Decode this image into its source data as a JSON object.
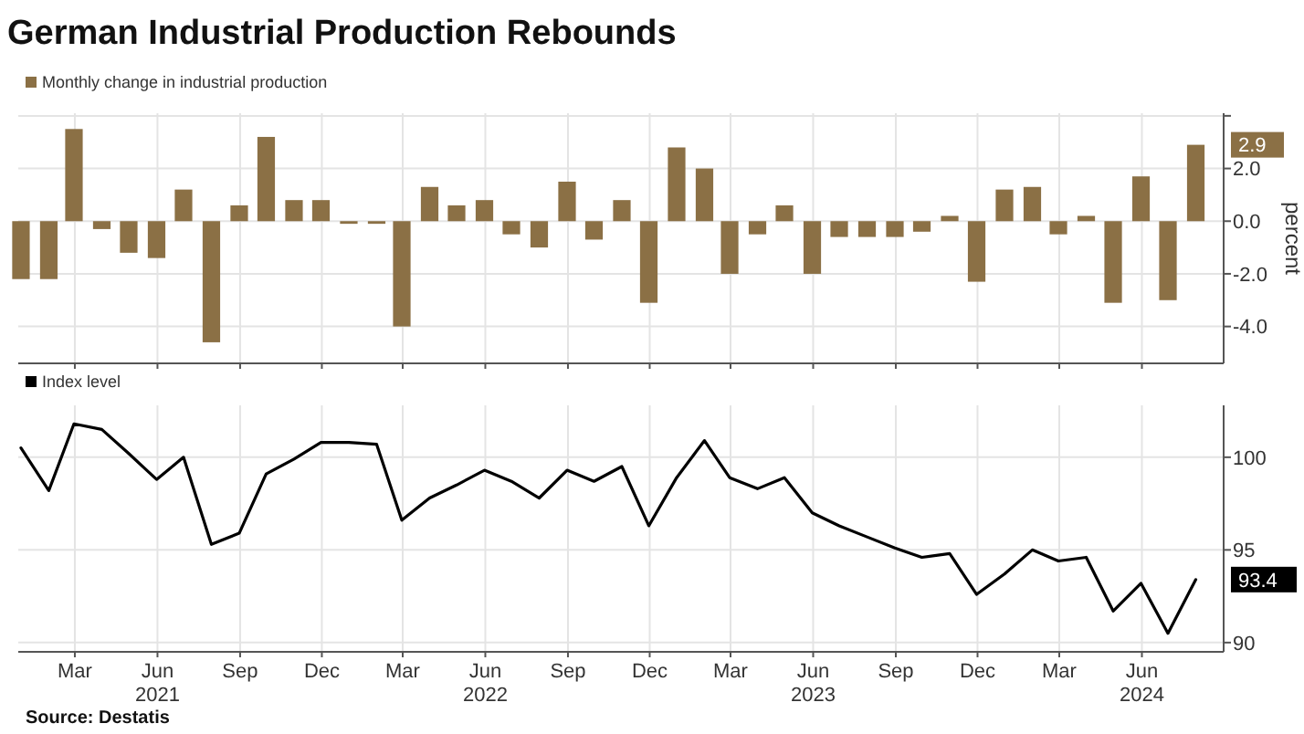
{
  "chart_data": [
    {
      "type": "bar",
      "title": "German Industrial Production Rebounds",
      "ylabel": "percent",
      "legend": "top left",
      "grid": true,
      "tick_labels": "y",
      "xlim": [
        "2020-12-28",
        "2024-08-31"
      ],
      "ylim": [
        -5.4,
        4.1
      ],
      "yticks": [
        {
          "value": 4,
          "label": null
        },
        {
          "value": 2,
          "label": "2.0"
        },
        {
          "value": 0,
          "label": "0.0"
        },
        {
          "value": -2,
          "label": "-2.0"
        },
        {
          "value": -4,
          "label": "-4.0"
        }
      ],
      "xticks": [
        {
          "value": "2021-03-01",
          "label": null
        },
        {
          "value": "2021-06-01",
          "label": null
        },
        {
          "value": "2021-09-01",
          "label": null
        },
        {
          "value": "2021-12-01",
          "label": null
        },
        {
          "value": "2022-03-01",
          "label": null
        },
        {
          "value": "2022-06-01",
          "label": null
        },
        {
          "value": "2022-09-01",
          "label": null
        },
        {
          "value": "2022-12-01",
          "label": null
        },
        {
          "value": "2023-03-01",
          "label": null
        },
        {
          "value": "2023-06-01",
          "label": null
        },
        {
          "value": "2023-09-01",
          "label": null
        },
        {
          "value": "2023-12-01",
          "label": null
        },
        {
          "value": "2024-03-01",
          "label": null
        },
        {
          "value": "2024-06-01",
          "label": null
        }
      ],
      "x": [
        "2020-12-31",
        "2021-01-31",
        "2021-02-28",
        "2021-03-31",
        "2021-04-30",
        "2021-05-31",
        "2021-06-30",
        "2021-07-31",
        "2021-08-31",
        "2021-09-30",
        "2021-10-31",
        "2021-11-30",
        "2021-12-31",
        "2022-01-31",
        "2022-02-28",
        "2022-03-31",
        "2022-04-30",
        "2022-05-31",
        "2022-06-30",
        "2022-07-31",
        "2022-08-31",
        "2022-09-30",
        "2022-10-31",
        "2022-11-30",
        "2022-12-31",
        "2023-01-31",
        "2023-02-28",
        "2023-03-31",
        "2023-04-30",
        "2023-05-31",
        "2023-06-30",
        "2023-07-31",
        "2023-08-31",
        "2023-09-30",
        "2023-10-31",
        "2023-11-30",
        "2023-12-31",
        "2024-01-31",
        "2024-02-29",
        "2024-03-31",
        "2024-04-30",
        "2024-05-31",
        "2024-06-30",
        "2024-07-31"
      ],
      "series": [
        {
          "name": "Monthly change in industrial production",
          "color": "#8b7045",
          "values": [
            -2.2,
            -2.2,
            3.5,
            -0.3,
            -1.2,
            -1.4,
            1.2,
            -4.6,
            0.6,
            3.2,
            0.8,
            0.8,
            -0.1,
            -0.1,
            -4.0,
            1.3,
            0.6,
            0.8,
            -0.5,
            -1.0,
            1.5,
            -0.7,
            0.8,
            -3.1,
            2.8,
            2.0,
            -2.0,
            -0.5,
            0.6,
            -2.0,
            -0.6,
            -0.6,
            -0.6,
            -0.4,
            0.2,
            -2.3,
            1.2,
            1.3,
            -0.5,
            0.2,
            -3.1,
            1.7,
            -3.0,
            2.9
          ]
        }
      ],
      "annotations": [
        {
          "text": "2.9",
          "x": "2024-07-31",
          "y": 2.9
        }
      ]
    },
    {
      "type": "line",
      "legend": "top left",
      "grid": true,
      "xlim": [
        "2020-12-28",
        "2024-08-31"
      ],
      "ylim": [
        89.5,
        102.8
      ],
      "yticks": [
        90,
        95,
        100
      ],
      "xticks": [
        {
          "value": "2021-03-01",
          "label": "Mar"
        },
        {
          "value": "2021-06-01",
          "label": "Jun\n2021"
        },
        {
          "value": "2021-09-01",
          "label": "Sep"
        },
        {
          "value": "2021-12-01",
          "label": "Dec"
        },
        {
          "value": "2022-03-01",
          "label": "Mar"
        },
        {
          "value": "2022-06-01",
          "label": "Jun\n2022"
        },
        {
          "value": "2022-09-01",
          "label": "Sep"
        },
        {
          "value": "2022-12-01",
          "label": "Dec"
        },
        {
          "value": "2023-03-01",
          "label": "Mar"
        },
        {
          "value": "2023-06-01",
          "label": "Jun\n2023"
        },
        {
          "value": "2023-09-01",
          "label": "Sep"
        },
        {
          "value": "2023-12-01",
          "label": "Dec"
        },
        {
          "value": "2024-03-01",
          "label": "Mar"
        },
        {
          "value": "2024-06-01",
          "label": "Jun\n2024"
        }
      ],
      "x": [
        "2020-12-31",
        "2021-01-31",
        "2021-02-28",
        "2021-03-31",
        "2021-04-30",
        "2021-05-31",
        "2021-06-30",
        "2021-07-31",
        "2021-08-31",
        "2021-09-30",
        "2021-10-31",
        "2021-11-30",
        "2021-12-31",
        "2022-01-31",
        "2022-02-28",
        "2022-03-31",
        "2022-04-30",
        "2022-05-31",
        "2022-06-30",
        "2022-07-31",
        "2022-08-31",
        "2022-09-30",
        "2022-10-31",
        "2022-11-30",
        "2022-12-31",
        "2023-01-31",
        "2023-02-28",
        "2023-03-31",
        "2023-04-30",
        "2023-05-31",
        "2023-06-30",
        "2023-07-31",
        "2023-08-31",
        "2023-09-30",
        "2023-10-31",
        "2023-11-30",
        "2023-12-31",
        "2024-01-31",
        "2024-02-29",
        "2024-03-31",
        "2024-04-30",
        "2024-05-31",
        "2024-06-30",
        "2024-07-31"
      ],
      "series": [
        {
          "name": "Index level",
          "color": "#000000",
          "values": [
            100.5,
            98.2,
            101.8,
            101.5,
            100.2,
            98.8,
            100.0,
            95.3,
            95.9,
            99.1,
            99.9,
            100.8,
            100.8,
            100.7,
            96.6,
            97.8,
            98.5,
            99.3,
            98.7,
            97.8,
            99.3,
            98.7,
            99.5,
            96.3,
            98.9,
            100.9,
            98.9,
            98.3,
            98.9,
            97.0,
            96.3,
            95.7,
            95.1,
            94.6,
            94.8,
            92.6,
            93.7,
            95.0,
            94.4,
            94.6,
            91.7,
            93.2,
            90.5,
            93.4
          ]
        }
      ],
      "annotations": [
        {
          "text": "93.4",
          "x": "2024-07-31",
          "y": 93.4
        },
        "Source: Destatis"
      ]
    }
  ]
}
